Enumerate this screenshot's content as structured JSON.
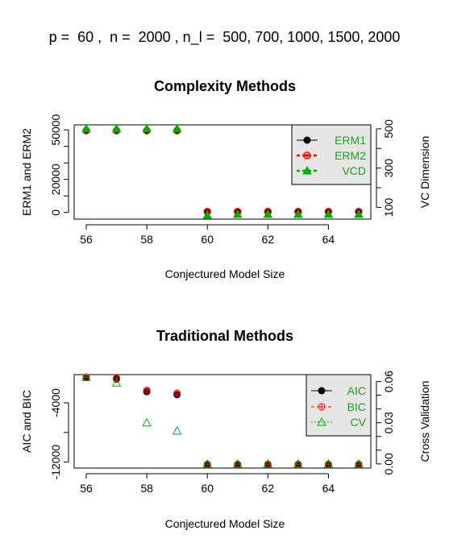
{
  "header": {
    "text": "p =  60 ,  n =  2000 , n_l =  500, 700, 1000, 1500, 2000"
  },
  "chart_data": [
    {
      "type": "scatter",
      "title": "Complexity Methods",
      "xlabel": "Conjectured Model Size",
      "ylabel_left": "ERM1 and ERM2",
      "ylabel_right": "VC Dimension",
      "xlim": [
        55.6,
        65.4
      ],
      "ylim_left": [
        -4000,
        53000
      ],
      "ylim_right": [
        40,
        520
      ],
      "xticks": [
        56,
        58,
        60,
        62,
        64
      ],
      "yticks_left": [
        0,
        20000,
        50000
      ],
      "yticks_left_all": [
        0,
        10000,
        20000,
        30000,
        40000,
        50000
      ],
      "yticks_right": [
        100,
        300,
        500
      ],
      "yticks_right_all": [
        100,
        200,
        300,
        400,
        500
      ],
      "x": [
        56,
        57,
        58,
        59,
        60,
        61,
        62,
        63,
        64,
        65
      ],
      "series": [
        {
          "name": "ERM1",
          "axis": "left",
          "marker": "dot",
          "color": "#000000",
          "values": [
            49500,
            49500,
            49500,
            49500,
            500,
            500,
            500,
            500,
            500,
            500
          ]
        },
        {
          "name": "ERM2",
          "axis": "left",
          "marker": "circle-dot",
          "color": "#ff0000",
          "values": [
            49500,
            49500,
            49500,
            49500,
            500,
            500,
            500,
            500,
            500,
            500
          ]
        },
        {
          "name": "VCD",
          "axis": "right",
          "marker": "triangle",
          "color": "#00b000",
          "values": [
            500,
            500,
            500,
            500,
            60,
            65,
            65,
            65,
            65,
            65
          ]
        }
      ],
      "legend": {
        "position": "top-right",
        "background": "#e5e5e5",
        "labels": [
          "ERM1",
          "ERM2",
          "VCD"
        ]
      }
    },
    {
      "type": "scatter",
      "title": "Traditional Methods",
      "xlabel": "Conjectured Model Size",
      "ylabel_left": "AIC and BIC",
      "ylabel_right": "Cross Validation",
      "xlim": [
        55.6,
        65.4
      ],
      "ylim_left": [
        -12800,
        -200
      ],
      "ylim_right": [
        -0.003,
        0.065
      ],
      "xticks": [
        56,
        58,
        60,
        62,
        64
      ],
      "yticks_left": [
        -12000,
        -4000
      ],
      "yticks_left_all": [
        -12000,
        -8000,
        -4000
      ],
      "yticks_right": [
        0.0,
        0.03,
        0.06
      ],
      "yticks_right_all": [
        0.0,
        0.01,
        0.02,
        0.03,
        0.04,
        0.05,
        0.06
      ],
      "yticks_right_labels": [
        "0.00",
        "0.03",
        "0.06"
      ],
      "x": [
        56,
        57,
        58,
        59,
        60,
        61,
        62,
        63,
        64,
        65
      ],
      "series": [
        {
          "name": "AIC",
          "axis": "left",
          "marker": "dot",
          "color": "#000000",
          "values": [
            -600,
            -800,
            -2500,
            -2900,
            -12300,
            -12300,
            -12300,
            -12300,
            -12300,
            -12300
          ]
        },
        {
          "name": "BIC",
          "axis": "left",
          "marker": "circle-plus",
          "color": "#ff0000",
          "values": [
            -600,
            -700,
            -2300,
            -2700,
            -12300,
            -12300,
            -12300,
            -12300,
            -12300,
            -12300
          ]
        },
        {
          "name": "CV",
          "axis": "right",
          "marker": "triangle-open",
          "color": "#00b000",
          "values": [
            0.063,
            0.059,
            0.03,
            0.024,
            0.0,
            0.0,
            0.0,
            0.0,
            0.0,
            0.0
          ]
        }
      ],
      "legend": {
        "position": "top-right",
        "background": "#e5e5e5",
        "labels": [
          "AIC",
          "BIC",
          "CV"
        ]
      }
    }
  ]
}
